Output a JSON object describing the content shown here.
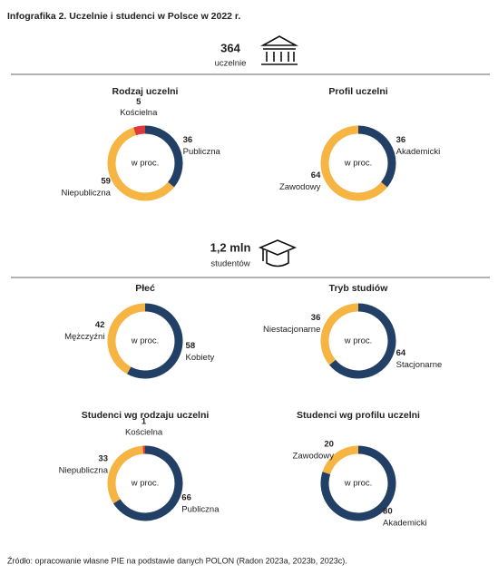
{
  "title": "Infografika 2.  Uczelnie i studenci w Polsce w 2022 r.",
  "stats": [
    {
      "value": "364",
      "label": "uczelnie"
    },
    {
      "value": "1,2 mln",
      "label": "studentów"
    }
  ],
  "chart_data": [
    {
      "type": "donut",
      "title": "Rodzaj uczelni",
      "center_label": "w proc.",
      "categories": [
        "Publiczna",
        "Niepubliczna",
        "Kościelna"
      ],
      "values": [
        36,
        59,
        5
      ],
      "colors": [
        "#223f66",
        "#f6b443",
        "#e0393b"
      ]
    },
    {
      "type": "donut",
      "title": "Profil uczelni",
      "center_label": "w proc.",
      "categories": [
        "Akademicki",
        "Zawodowy"
      ],
      "values": [
        36,
        64
      ],
      "colors": [
        "#223f66",
        "#f6b443"
      ]
    },
    {
      "type": "donut",
      "title": "Płeć",
      "center_label": "w proc.",
      "categories": [
        "Kobiety",
        "Mężczyźni"
      ],
      "values": [
        58,
        42
      ],
      "colors": [
        "#223f66",
        "#f6b443"
      ]
    },
    {
      "type": "donut",
      "title": "Tryb studiów",
      "center_label": "w proc.",
      "categories": [
        "Stacjonarne",
        "Niestacjonarne"
      ],
      "values": [
        64,
        36
      ],
      "colors": [
        "#223f66",
        "#f6b443"
      ]
    },
    {
      "type": "donut",
      "title": "Studenci wg rodzaju uczelni",
      "center_label": "w proc.",
      "categories": [
        "Publiczna",
        "Niepubliczna",
        "Kościelna"
      ],
      "values": [
        66,
        33,
        1
      ],
      "colors": [
        "#223f66",
        "#f6b443",
        "#e0393b"
      ]
    },
    {
      "type": "donut",
      "title": "Studenci wg profilu uczelni",
      "center_label": "w proc.",
      "categories": [
        "Akademicki",
        "Zawodowy"
      ],
      "values": [
        80,
        20
      ],
      "colors": [
        "#223f66",
        "#f6b443"
      ]
    }
  ],
  "source": "Źródło: opracowanie własne PIE na podstawie danych POLON (Radon 2023a, 2023b, 2023c)."
}
